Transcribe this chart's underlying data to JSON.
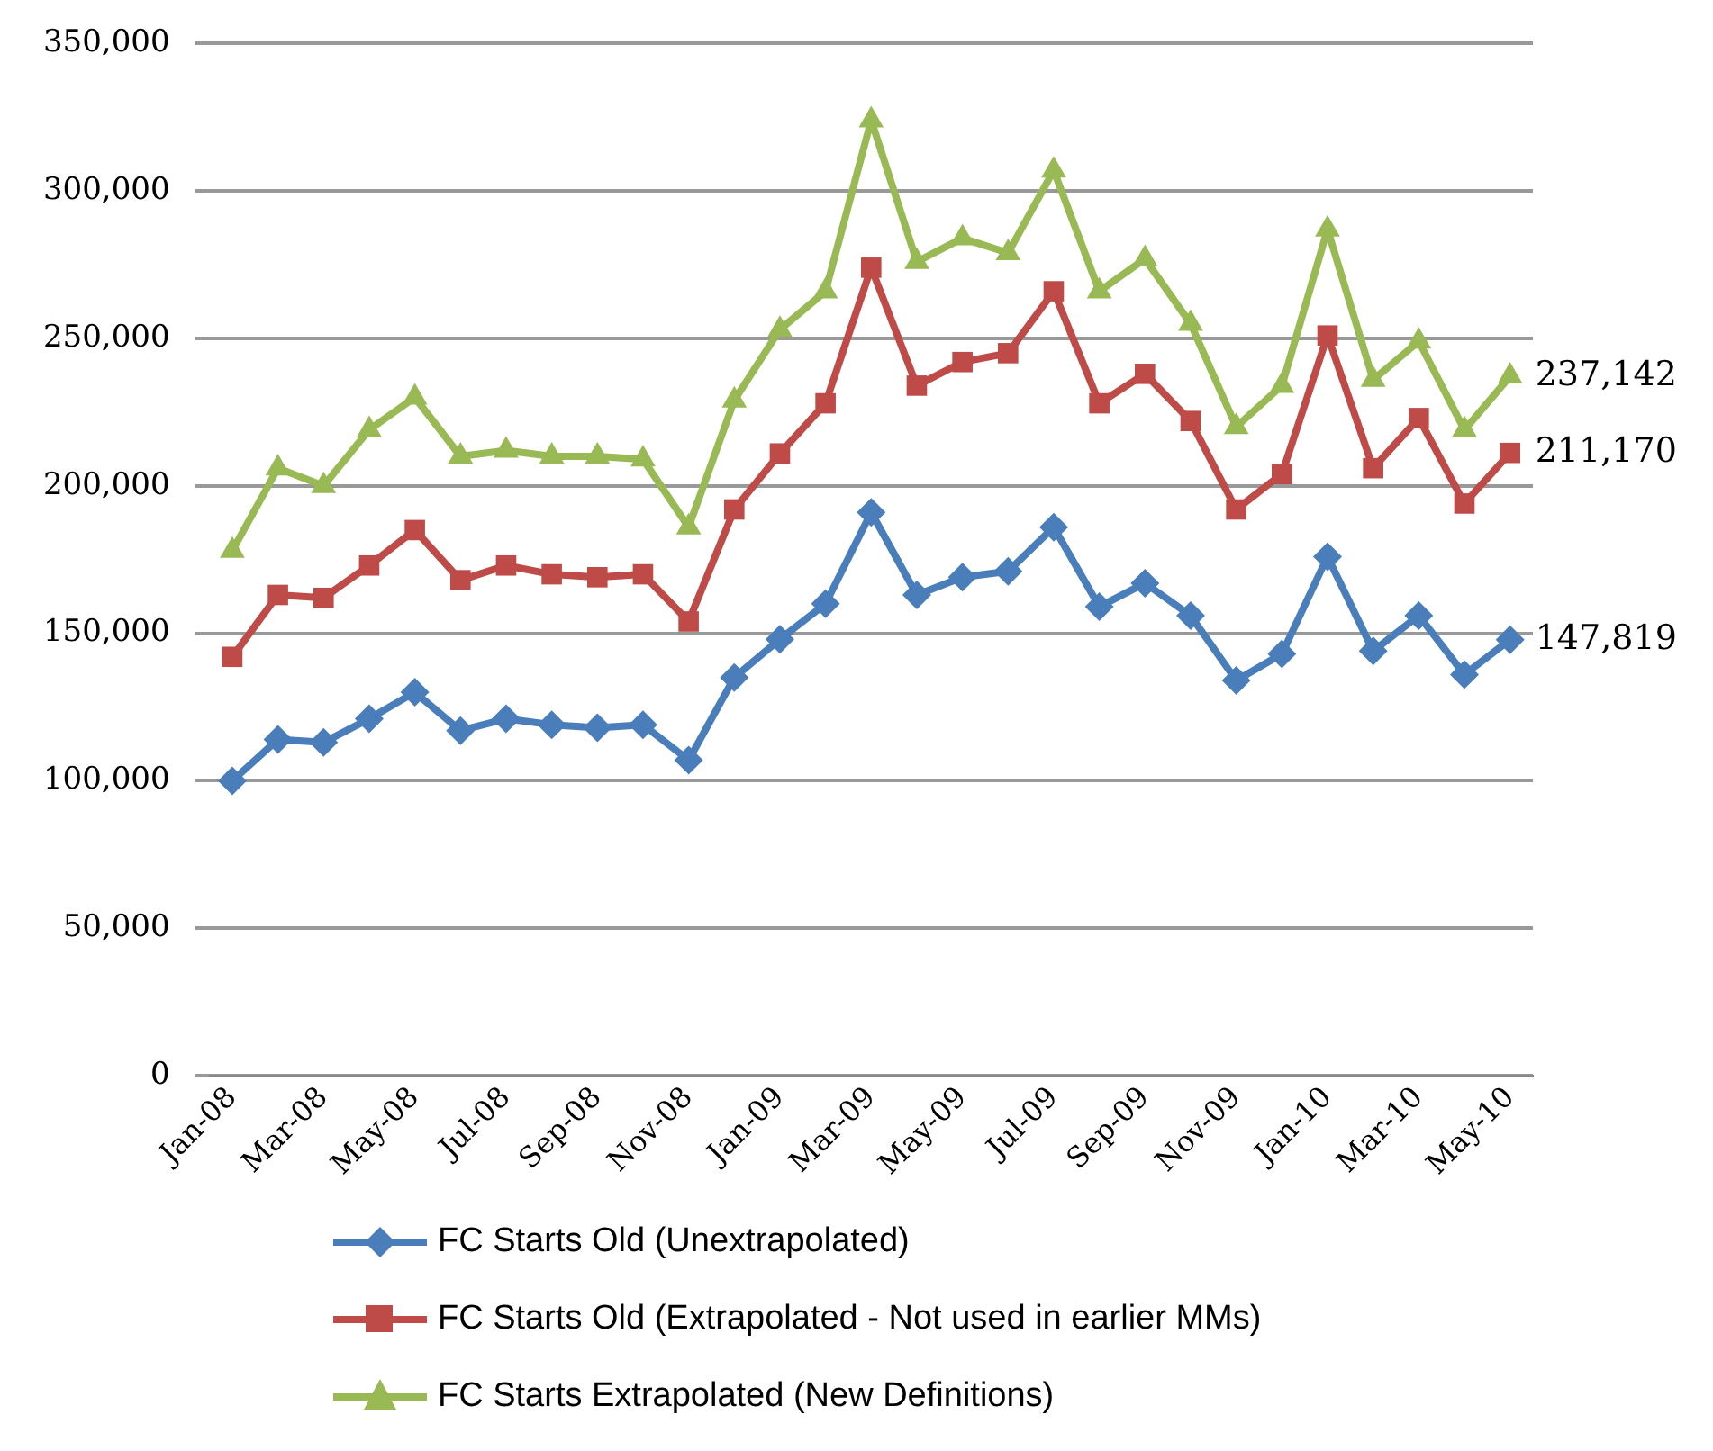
{
  "chart_data": {
    "type": "line",
    "categories": [
      "Jan-08",
      null,
      "Mar-08",
      null,
      "May-08",
      null,
      "Jul-08",
      null,
      "Sep-08",
      null,
      "Nov-08",
      null,
      "Jan-09",
      null,
      "Mar-09",
      null,
      "May-09",
      null,
      "Jul-09",
      null,
      "Sep-09",
      null,
      "Nov-09",
      null,
      "Jan-10",
      null,
      "Mar-10",
      null,
      "May-10"
    ],
    "series": [
      {
        "name": "FC Starts Old (Unextrapolated)",
        "color": "#4a7ebb",
        "marker": "diamond",
        "values": [
          100000,
          114000,
          113000,
          121000,
          130000,
          117000,
          121000,
          119000,
          118000,
          119000,
          107000,
          135000,
          148000,
          160000,
          191000,
          163000,
          169000,
          171000,
          186000,
          159000,
          167000,
          156000,
          134000,
          143000,
          176000,
          144000,
          156000,
          136000,
          147819
        ],
        "value_labels": [
          null,
          null,
          null,
          null,
          null,
          null,
          null,
          null,
          null,
          null,
          null,
          null,
          null,
          null,
          null,
          null,
          null,
          null,
          null,
          null,
          null,
          null,
          null,
          null,
          null,
          null,
          null,
          null,
          "147,819"
        ]
      },
      {
        "name": "FC Starts Old (Extrapolated - Not used in earlier MMs)",
        "color": "#be4b48",
        "marker": "square",
        "values": [
          142000,
          163000,
          162000,
          173000,
          185000,
          168000,
          173000,
          170000,
          169000,
          170000,
          154000,
          192000,
          211000,
          228000,
          274000,
          234000,
          242000,
          245000,
          266000,
          228000,
          238000,
          222000,
          192000,
          204000,
          251000,
          206000,
          223000,
          194000,
          211170
        ],
        "value_labels": [
          null,
          null,
          null,
          null,
          null,
          null,
          null,
          null,
          null,
          null,
          null,
          null,
          null,
          null,
          null,
          null,
          null,
          null,
          null,
          null,
          null,
          null,
          null,
          null,
          null,
          null,
          null,
          null,
          "211,170"
        ]
      },
      {
        "name": "FC Starts Extrapolated (New Definitions)",
        "color": "#98b954",
        "marker": "triangle",
        "values": [
          178000,
          206000,
          200000,
          219000,
          230000,
          210000,
          212000,
          210000,
          210000,
          209000,
          186000,
          229000,
          253000,
          266000,
          324000,
          276000,
          284000,
          279000,
          307000,
          266000,
          277000,
          255000,
          220000,
          234000,
          287000,
          236000,
          249000,
          219000,
          237142
        ],
        "value_labels": [
          null,
          null,
          null,
          null,
          null,
          null,
          null,
          null,
          null,
          null,
          null,
          null,
          null,
          null,
          null,
          null,
          null,
          null,
          null,
          null,
          null,
          null,
          null,
          null,
          null,
          null,
          null,
          null,
          "237,142"
        ]
      }
    ],
    "ylim": [
      0,
      350000
    ],
    "yticks": [
      0,
      {
        "value": 50000,
        "label": "50,000"
      },
      {
        "value": 100000,
        "label": "100,000"
      },
      {
        "value": 150000,
        "label": "150,000"
      },
      {
        "value": 200000,
        "label": "200,000"
      },
      {
        "value": 250000,
        "label": "250,000"
      },
      {
        "value": 300000,
        "label": "300,000"
      },
      {
        "value": 350000,
        "label": "350,000"
      }
    ],
    "grid": "y",
    "legend": "bottom",
    "line_style": "solid"
  }
}
